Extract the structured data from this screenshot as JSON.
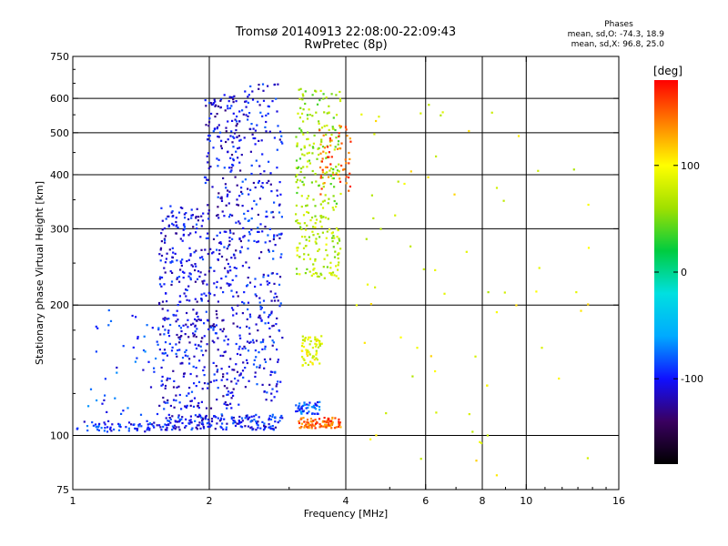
{
  "title": {
    "line1": "Tromsø 20140913 22:08:00-22:09:43",
    "line2": "RwPretec (8p)"
  },
  "phases_box": {
    "title": "Phases",
    "line1": "mean, sd,O: -74.3, 18.9",
    "line2": "mean, sd,X:  96.8, 25.0"
  },
  "colorbar": {
    "unit": "[deg]",
    "ticks": [
      "100",
      "0",
      "-100"
    ],
    "tick_values": [
      100,
      0,
      -100
    ],
    "range": [
      -180,
      180
    ],
    "colors": [
      "#000000",
      "#3a0060",
      "#1010ff",
      "#00aaff",
      "#00e0e0",
      "#00cc40",
      "#a0e000",
      "#ffff00",
      "#ff8000",
      "#ff0000"
    ]
  },
  "chart_data": {
    "type": "scatter",
    "xlabel": "Frequency [MHz]",
    "ylabel": "Stationary phase Virtual Height [km]",
    "x_scale": "log",
    "y_scale": "log",
    "xlim": [
      1,
      16
    ],
    "ylim": [
      75,
      750
    ],
    "x_ticks": [
      1,
      2,
      4,
      6,
      8,
      10,
      16
    ],
    "y_ticks": [
      75,
      100,
      200,
      300,
      400,
      500,
      600,
      750
    ],
    "x_grid": [
      2,
      4,
      6,
      8,
      10
    ],
    "y_grid": [
      100,
      200,
      300,
      400,
      500,
      600
    ],
    "clusters": [
      {
        "x": [
          1.02,
          1.6
        ],
        "y": [
          102,
          108
        ],
        "phase": -95,
        "n": 70
      },
      {
        "x": [
          1.08,
          1.55
        ],
        "y": [
          110,
          200
        ],
        "phase": -90,
        "n": 45
      },
      {
        "x": [
          1.6,
          2.9
        ],
        "y": [
          103,
          112
        ],
        "phase": -100,
        "n": 180
      },
      {
        "x": [
          1.55,
          1.95
        ],
        "y": [
          115,
          340
        ],
        "phase": -105,
        "n": 320
      },
      {
        "x": [
          1.95,
          2.35
        ],
        "y": [
          115,
          620
        ],
        "phase": -108,
        "n": 340
      },
      {
        "x": [
          2.35,
          2.9
        ],
        "y": [
          120,
          650
        ],
        "phase": -102,
        "n": 300
      },
      {
        "x": [
          3.15,
          3.9
        ],
        "y": [
          104,
          110
        ],
        "phase": 150,
        "n": 90
      },
      {
        "x": [
          3.1,
          3.5
        ],
        "y": [
          112,
          120
        ],
        "phase": -85,
        "n": 50
      },
      {
        "x": [
          3.2,
          3.55
        ],
        "y": [
          145,
          170
        ],
        "phase": 90,
        "n": 60
      },
      {
        "x": [
          3.1,
          3.9
        ],
        "y": [
          230,
          330
        ],
        "phase": 70,
        "n": 120
      },
      {
        "x": [
          3.1,
          3.9
        ],
        "y": [
          330,
          640
        ],
        "phase": 60,
        "n": 170
      },
      {
        "x": [
          3.5,
          4.1
        ],
        "y": [
          360,
          520
        ],
        "phase": 150,
        "n": 60
      },
      {
        "x": [
          4.2,
          14
        ],
        "y": [
          80,
          600
        ],
        "phase": 90,
        "n": 70
      }
    ]
  }
}
